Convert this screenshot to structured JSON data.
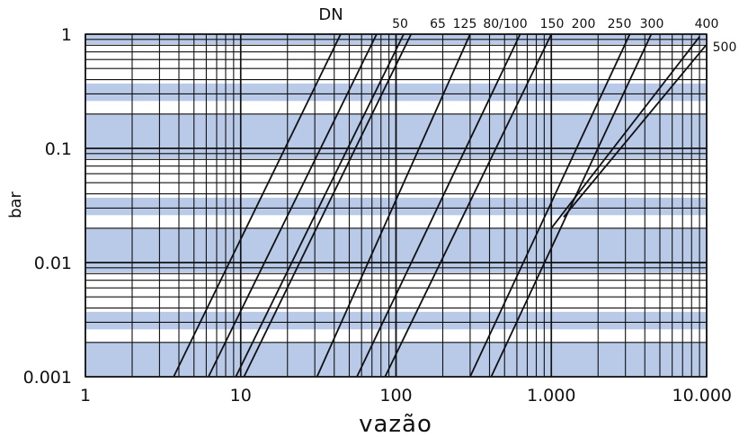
{
  "chart_data": {
    "type": "line",
    "xscale": "log",
    "yscale": "log",
    "xlim": [
      1,
      10000
    ],
    "ylim": [
      0.001,
      1
    ],
    "xlabel": "vazão",
    "ylabel": "bar",
    "legend_title": "DN",
    "x_ticks": [
      {
        "value": 1,
        "label": "1"
      },
      {
        "value": 10,
        "label": "10"
      },
      {
        "value": 100,
        "label": "100"
      },
      {
        "value": 1000,
        "label": "1.000"
      },
      {
        "value": 10000,
        "label": "10.000"
      }
    ],
    "y_ticks": [
      {
        "value": 1,
        "label": "1"
      },
      {
        "value": 0.1,
        "label": "0.1"
      },
      {
        "value": 0.01,
        "label": "0.01"
      },
      {
        "value": 0.001,
        "label": "0.001"
      }
    ],
    "grid": true,
    "band_color": "#b9c9e8",
    "line_color": "#111111",
    "series": [
      {
        "name": "50",
        "points": [
          [
            3.7,
            0.001
          ],
          [
            44,
            1
          ]
        ]
      },
      {
        "name": "65",
        "points": [
          [
            6.2,
            0.001
          ],
          [
            75,
            1
          ]
        ]
      },
      {
        "name": "125",
        "points": [
          [
            9.3,
            0.001
          ],
          [
            112,
            1
          ]
        ]
      },
      {
        "name": "",
        "points": [
          [
            10.5,
            0.001
          ],
          [
            125,
            1
          ]
        ]
      },
      {
        "name": "80/100",
        "points": [
          [
            31,
            0.001
          ],
          [
            300,
            1
          ]
        ]
      },
      {
        "name": "150",
        "points": [
          [
            56,
            0.001
          ],
          [
            630,
            1
          ]
        ]
      },
      {
        "name": "200",
        "points": [
          [
            85,
            0.001
          ],
          [
            1000,
            1
          ]
        ]
      },
      {
        "name": "250",
        "points": [
          [
            300,
            0.001
          ],
          [
            3200,
            1
          ]
        ]
      },
      {
        "name": "300",
        "points": [
          [
            410,
            0.001
          ],
          [
            4400,
            1
          ]
        ]
      },
      {
        "name": "400",
        "points": [
          [
            1000,
            0.02
          ],
          [
            9000,
            0.95
          ]
        ]
      },
      {
        "name": "500",
        "points": [
          [
            1200,
            0.025
          ],
          [
            9900,
            0.8
          ]
        ]
      }
    ]
  }
}
